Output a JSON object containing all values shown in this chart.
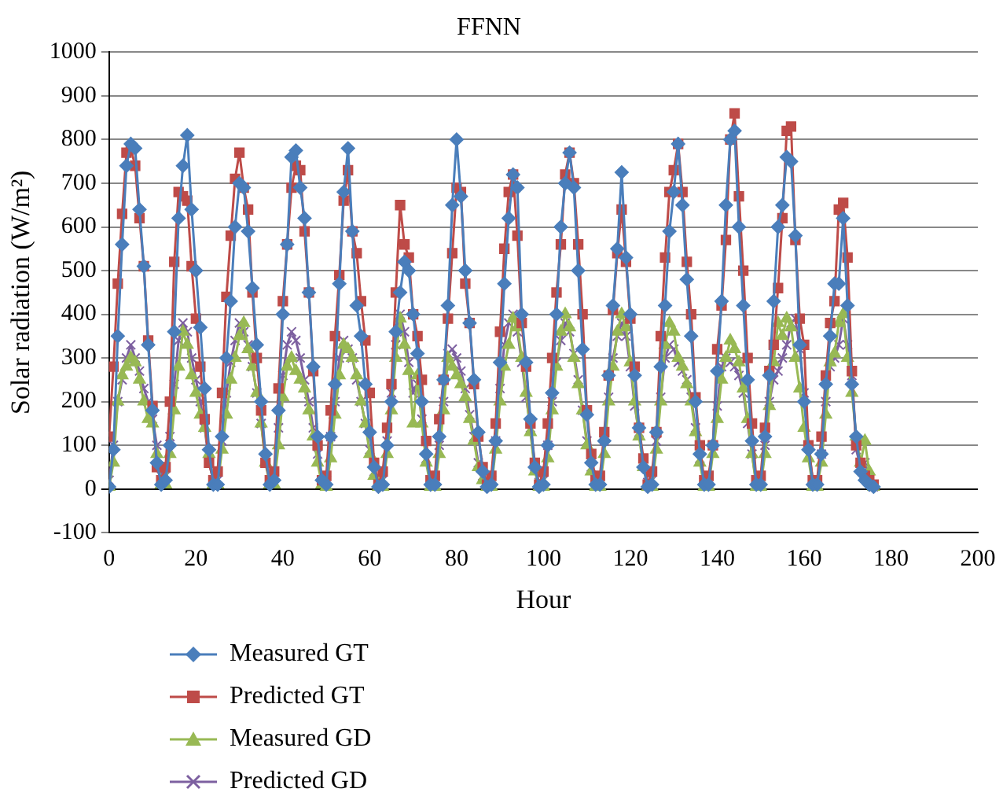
{
  "chart_data": {
    "type": "line",
    "title": "FFNN",
    "xlabel": "Hour",
    "ylabel": "Solar radiation (W/m²)",
    "x": [
      0,
      1,
      2,
      3,
      4,
      5,
      6,
      7,
      8,
      9,
      10,
      11,
      12,
      13,
      14,
      15,
      16,
      17,
      18,
      19,
      20,
      21,
      22,
      23,
      24,
      25,
      26,
      27,
      28,
      29,
      30,
      31,
      32,
      33,
      34,
      35,
      36,
      37,
      38,
      39,
      40,
      41,
      42,
      43,
      44,
      45,
      46,
      47,
      48,
      49,
      50,
      51,
      52,
      53,
      54,
      55,
      56,
      57,
      58,
      59,
      60,
      61,
      62,
      63,
      64,
      65,
      66,
      67,
      68,
      69,
      70,
      71,
      72,
      73,
      74,
      75,
      76,
      77,
      78,
      79,
      80,
      81,
      82,
      83,
      84,
      85,
      86,
      87,
      88,
      89,
      90,
      91,
      92,
      93,
      94,
      95,
      96,
      97,
      98,
      99,
      100,
      101,
      102,
      103,
      104,
      105,
      106,
      107,
      108,
      109,
      110,
      111,
      112,
      113,
      114,
      115,
      116,
      117,
      118,
      119,
      120,
      121,
      122,
      123,
      124,
      125,
      126,
      127,
      128,
      129,
      130,
      131,
      132,
      133,
      134,
      135,
      136,
      137,
      138,
      139,
      140,
      141,
      142,
      143,
      144,
      145,
      146,
      147,
      148,
      149,
      150,
      151,
      152,
      153,
      154,
      155,
      156,
      157,
      158,
      159,
      160,
      161,
      162,
      163,
      164,
      165,
      166,
      167,
      168,
      169,
      170,
      171,
      172,
      173,
      174,
      175,
      176
    ],
    "series": [
      {
        "name": "Measured GT",
        "color": "#4a7ebb",
        "marker": "diamond",
        "values": [
          5,
          90,
          350,
          560,
          740,
          790,
          780,
          640,
          510,
          330,
          180,
          60,
          10,
          20,
          100,
          360,
          620,
          740,
          810,
          640,
          500,
          370,
          230,
          90,
          10,
          10,
          120,
          300,
          430,
          600,
          700,
          690,
          590,
          460,
          330,
          200,
          80,
          10,
          20,
          180,
          400,
          560,
          760,
          775,
          690,
          620,
          450,
          280,
          120,
          20,
          10,
          120,
          240,
          470,
          680,
          780,
          590,
          420,
          350,
          240,
          130,
          50,
          5,
          10,
          100,
          200,
          360,
          450,
          520,
          500,
          400,
          310,
          200,
          80,
          10,
          10,
          120,
          250,
          420,
          650,
          800,
          670,
          500,
          380,
          250,
          130,
          40,
          5,
          10,
          110,
          290,
          470,
          620,
          720,
          690,
          400,
          290,
          160,
          50,
          5,
          10,
          100,
          220,
          400,
          600,
          700,
          770,
          690,
          500,
          320,
          170,
          60,
          10,
          10,
          110,
          260,
          420,
          550,
          725,
          530,
          400,
          260,
          140,
          50,
          5,
          10,
          130,
          280,
          420,
          590,
          680,
          790,
          650,
          480,
          350,
          200,
          80,
          10,
          10,
          100,
          270,
          430,
          650,
          800,
          820,
          600,
          420,
          250,
          110,
          10,
          10,
          120,
          260,
          430,
          600,
          650,
          760,
          750,
          580,
          330,
          200,
          90,
          10,
          10,
          80,
          240,
          350,
          470,
          470,
          620,
          420,
          240,
          120,
          40,
          20,
          10,
          5
        ]
      },
      {
        "name": "Predicted GT",
        "color": "#be4b48",
        "marker": "square",
        "values": [
          120,
          280,
          470,
          630,
          770,
          780,
          740,
          620,
          510,
          340,
          190,
          50,
          20,
          50,
          200,
          520,
          680,
          670,
          660,
          510,
          390,
          280,
          160,
          60,
          20,
          40,
          220,
          440,
          580,
          710,
          770,
          690,
          640,
          450,
          300,
          180,
          60,
          20,
          40,
          230,
          430,
          560,
          690,
          740,
          730,
          590,
          450,
          270,
          100,
          20,
          30,
          180,
          350,
          490,
          660,
          730,
          590,
          540,
          430,
          340,
          220,
          60,
          10,
          40,
          140,
          240,
          450,
          650,
          560,
          530,
          400,
          350,
          250,
          110,
          20,
          30,
          160,
          250,
          390,
          540,
          690,
          680,
          470,
          380,
          240,
          120,
          50,
          10,
          30,
          150,
          360,
          550,
          680,
          720,
          580,
          380,
          280,
          150,
          60,
          10,
          40,
          150,
          300,
          450,
          560,
          720,
          770,
          700,
          560,
          400,
          180,
          80,
          20,
          30,
          130,
          260,
          410,
          540,
          640,
          520,
          390,
          280,
          140,
          70,
          10,
          40,
          130,
          350,
          530,
          680,
          730,
          790,
          680,
          520,
          400,
          210,
          100,
          20,
          30,
          100,
          320,
          420,
          570,
          800,
          860,
          670,
          500,
          300,
          150,
          20,
          30,
          140,
          270,
          330,
          460,
          620,
          820,
          830,
          570,
          390,
          330,
          100,
          20,
          20,
          120,
          260,
          380,
          430,
          640,
          655,
          530,
          270,
          100,
          60,
          30,
          20,
          10
        ]
      },
      {
        "name": "Measured GD",
        "color": "#98b954",
        "marker": "triangle",
        "values": [
          5,
          60,
          200,
          260,
          280,
          300,
          290,
          250,
          200,
          160,
          150,
          80,
          10,
          10,
          80,
          180,
          280,
          360,
          330,
          260,
          220,
          170,
          140,
          80,
          10,
          10,
          90,
          170,
          250,
          300,
          350,
          380,
          320,
          280,
          220,
          150,
          60,
          10,
          10,
          100,
          210,
          280,
          300,
          270,
          250,
          230,
          180,
          120,
          60,
          10,
          5,
          70,
          170,
          260,
          330,
          320,
          300,
          260,
          200,
          150,
          80,
          30,
          5,
          5,
          80,
          180,
          300,
          390,
          330,
          270,
          150,
          260,
          150,
          60,
          5,
          5,
          80,
          180,
          300,
          280,
          260,
          240,
          210,
          160,
          110,
          50,
          20,
          5,
          5,
          90,
          200,
          280,
          330,
          390,
          370,
          300,
          220,
          130,
          40,
          5,
          5,
          70,
          180,
          280,
          360,
          400,
          370,
          300,
          240,
          180,
          100,
          40,
          5,
          5,
          80,
          200,
          280,
          360,
          400,
          370,
          290,
          200,
          120,
          50,
          5,
          5,
          90,
          200,
          330,
          380,
          360,
          300,
          280,
          240,
          200,
          130,
          60,
          5,
          5,
          80,
          160,
          250,
          300,
          340,
          320,
          290,
          230,
          160,
          80,
          5,
          5,
          80,
          190,
          290,
          380,
          350,
          390,
          370,
          300,
          230,
          140,
          70,
          5,
          5,
          60,
          170,
          290,
          310,
          380,
          400,
          300,
          220,
          120,
          60,
          110,
          40,
          5
        ]
      },
      {
        "name": "Predicted GD",
        "color": "#7d60a0",
        "marker": "cross",
        "values": [
          20,
          100,
          200,
          250,
          300,
          330,
          300,
          270,
          230,
          200,
          160,
          100,
          30,
          30,
          120,
          240,
          340,
          380,
          360,
          300,
          250,
          200,
          140,
          60,
          20,
          20,
          110,
          220,
          290,
          340,
          380,
          360,
          330,
          280,
          220,
          150,
          70,
          20,
          30,
          140,
          260,
          330,
          360,
          340,
          300,
          250,
          200,
          140,
          80,
          20,
          20,
          120,
          200,
          300,
          340,
          320,
          300,
          250,
          200,
          150,
          90,
          40,
          10,
          20,
          110,
          220,
          330,
          400,
          360,
          290,
          220,
          240,
          160,
          70,
          20,
          20,
          100,
          200,
          310,
          320,
          300,
          270,
          230,
          170,
          120,
          60,
          30,
          10,
          20,
          110,
          230,
          330,
          380,
          400,
          360,
          290,
          210,
          140,
          50,
          15,
          20,
          100,
          200,
          290,
          340,
          380,
          360,
          310,
          250,
          180,
          110,
          50,
          15,
          20,
          110,
          210,
          300,
          350,
          380,
          350,
          280,
          190,
          130,
          60,
          15,
          20,
          110,
          210,
          300,
          330,
          320,
          290,
          270,
          250,
          210,
          140,
          70,
          15,
          20,
          100,
          190,
          280,
          300,
          290,
          280,
          260,
          220,
          150,
          80,
          15,
          20,
          100,
          200,
          250,
          270,
          300,
          330,
          380,
          390,
          320,
          220,
          100,
          20,
          10,
          80,
          200,
          280,
          300,
          330,
          390,
          330,
          260,
          90,
          50,
          60,
          20,
          5
        ]
      }
    ],
    "xlim": [
      0,
      200
    ],
    "xticks": [
      0,
      20,
      40,
      60,
      80,
      100,
      120,
      140,
      160,
      180,
      200
    ],
    "ylim": [
      -100,
      1000
    ],
    "yticks": [
      -100,
      0,
      100,
      200,
      300,
      400,
      500,
      600,
      700,
      800,
      900,
      1000
    ],
    "grid": "y",
    "legend": "bottom"
  }
}
